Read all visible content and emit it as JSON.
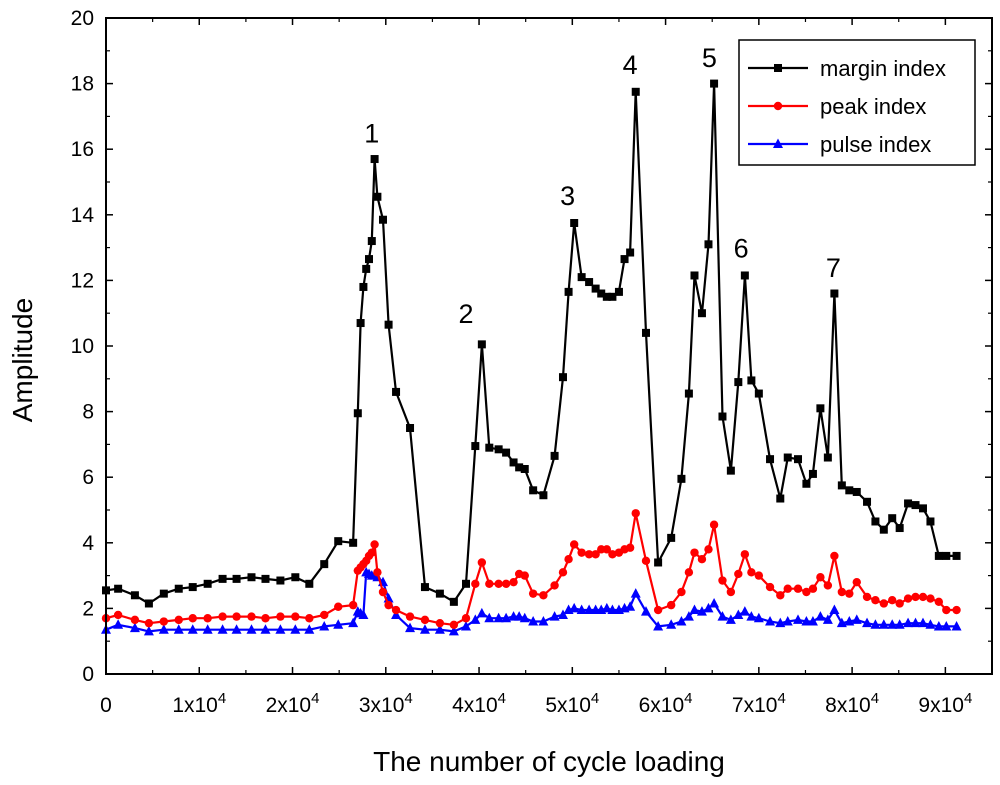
{
  "chart_data": {
    "type": "line",
    "xlabel": "The number of cycle loading",
    "ylabel": "Amplitude",
    "xlim": [
      0,
      95000
    ],
    "ylim": [
      0,
      20
    ],
    "x_ticks": [
      {
        "value": 0,
        "base": "0",
        "exp": ""
      },
      {
        "value": 10000,
        "base": "1x10",
        "exp": "4"
      },
      {
        "value": 20000,
        "base": "2x10",
        "exp": "4"
      },
      {
        "value": 30000,
        "base": "3x10",
        "exp": "4"
      },
      {
        "value": 40000,
        "base": "4x10",
        "exp": "4"
      },
      {
        "value": 50000,
        "base": "5x10",
        "exp": "4"
      },
      {
        "value": 60000,
        "base": "6x10",
        "exp": "4"
      },
      {
        "value": 70000,
        "base": "7x10",
        "exp": "4"
      },
      {
        "value": 80000,
        "base": "8x10",
        "exp": "4"
      },
      {
        "value": 90000,
        "base": "9x10",
        "exp": "4"
      }
    ],
    "y_ticks": [
      0,
      2,
      4,
      6,
      8,
      10,
      12,
      14,
      16,
      18,
      20
    ],
    "series": [
      {
        "name": "margin index",
        "color": "#000000",
        "marker": "square",
        "x": [
          0,
          1300,
          3100,
          4600,
          6200,
          7800,
          9300,
          10900,
          12500,
          14000,
          15600,
          17100,
          18700,
          20300,
          21800,
          23400,
          24900,
          26500,
          27000,
          27300,
          27600,
          27900,
          28200,
          28500,
          28800,
          29100,
          29700,
          30300,
          31100,
          32600,
          34200,
          35800,
          37300,
          38600,
          39600,
          40300,
          41100,
          42100,
          42900,
          43700,
          44300,
          44900,
          45800,
          46900,
          48100,
          49000,
          49600,
          50200,
          51000,
          51800,
          52500,
          53100,
          53700,
          54300,
          55000,
          55600,
          56200,
          56800,
          57900,
          59200,
          60600,
          61700,
          62500,
          63100,
          63900,
          64600,
          65200,
          66100,
          67000,
          67800,
          68500,
          69200,
          70000,
          71200,
          72300,
          73100,
          74200,
          75100,
          75800,
          76600,
          77400,
          78100,
          78900,
          79700,
          80500,
          81600,
          82500,
          83400,
          84300,
          85100,
          86000,
          86800,
          87600,
          88400,
          89300,
          90100,
          91200
        ],
        "values": [
          2.55,
          2.6,
          2.4,
          2.15,
          2.45,
          2.6,
          2.65,
          2.75,
          2.9,
          2.9,
          2.95,
          2.9,
          2.85,
          2.95,
          2.75,
          3.35,
          4.05,
          4.0,
          7.95,
          10.7,
          11.8,
          12.35,
          12.65,
          13.2,
          15.7,
          14.55,
          13.85,
          10.65,
          8.6,
          7.5,
          2.65,
          2.45,
          2.2,
          2.75,
          6.95,
          10.05,
          6.9,
          6.85,
          6.75,
          6.45,
          6.3,
          6.25,
          5.6,
          5.45,
          6.65,
          9.05,
          11.65,
          13.75,
          12.1,
          11.95,
          11.75,
          11.6,
          11.5,
          11.5,
          11.65,
          12.65,
          12.85,
          17.75,
          10.4,
          3.4,
          4.15,
          5.95,
          8.55,
          12.15,
          11.0,
          13.1,
          18.0,
          7.85,
          6.2,
          8.9,
          12.15,
          8.95,
          8.55,
          6.55,
          5.35,
          6.6,
          6.55,
          5.8,
          6.1,
          8.1,
          6.6,
          11.6,
          5.75,
          5.6,
          5.55,
          5.25,
          4.65,
          4.4,
          4.75,
          4.45,
          5.2,
          5.15,
          5.05,
          4.65,
          3.6,
          3.6,
          3.6
        ]
      },
      {
        "name": "peak index",
        "color": "#ff0000",
        "marker": "circle",
        "x": [
          0,
          1300,
          3100,
          4600,
          6200,
          7800,
          9300,
          10900,
          12500,
          14000,
          15600,
          17100,
          18700,
          20300,
          21800,
          23400,
          24900,
          26500,
          27000,
          27300,
          27600,
          27900,
          28200,
          28500,
          28800,
          29100,
          29700,
          30300,
          31100,
          32600,
          34200,
          35800,
          37300,
          38600,
          39600,
          40300,
          41100,
          42100,
          42900,
          43700,
          44300,
          44900,
          45800,
          46900,
          48100,
          49000,
          49600,
          50200,
          51000,
          51800,
          52500,
          53100,
          53700,
          54300,
          55000,
          55600,
          56200,
          56800,
          57900,
          59200,
          60600,
          61700,
          62500,
          63100,
          63900,
          64600,
          65200,
          66100,
          67000,
          67800,
          68500,
          69200,
          70000,
          71200,
          72300,
          73100,
          74200,
          75100,
          75800,
          76600,
          77400,
          78100,
          78900,
          79700,
          80500,
          81600,
          82500,
          83400,
          84300,
          85100,
          86000,
          86800,
          87600,
          88400,
          89300,
          90100,
          91200
        ],
        "values": [
          1.7,
          1.8,
          1.65,
          1.55,
          1.6,
          1.65,
          1.7,
          1.7,
          1.75,
          1.75,
          1.75,
          1.7,
          1.75,
          1.75,
          1.7,
          1.8,
          2.05,
          2.1,
          3.15,
          3.25,
          3.35,
          3.45,
          3.6,
          3.7,
          3.95,
          3.1,
          2.5,
          2.1,
          1.95,
          1.75,
          1.65,
          1.55,
          1.5,
          1.7,
          2.75,
          3.4,
          2.75,
          2.75,
          2.75,
          2.8,
          3.05,
          3.0,
          2.45,
          2.4,
          2.7,
          3.1,
          3.5,
          3.95,
          3.7,
          3.65,
          3.65,
          3.8,
          3.8,
          3.65,
          3.7,
          3.8,
          3.85,
          4.9,
          3.45,
          1.95,
          2.1,
          2.5,
          3.1,
          3.7,
          3.5,
          3.8,
          4.55,
          2.85,
          2.5,
          3.05,
          3.65,
          3.1,
          3.0,
          2.65,
          2.4,
          2.6,
          2.6,
          2.5,
          2.6,
          2.95,
          2.7,
          3.6,
          2.5,
          2.45,
          2.8,
          2.35,
          2.25,
          2.15,
          2.25,
          2.15,
          2.3,
          2.35,
          2.35,
          2.3,
          2.2,
          1.95,
          1.95
        ]
      },
      {
        "name": "pulse index",
        "color": "#0000ff",
        "marker": "triangle",
        "x": [
          0,
          1300,
          3100,
          4600,
          6200,
          7800,
          9300,
          10900,
          12500,
          14000,
          15600,
          17100,
          18700,
          20300,
          21800,
          23400,
          24900,
          26500,
          27000,
          27300,
          27600,
          27900,
          28200,
          28500,
          28800,
          29100,
          29700,
          30300,
          31100,
          32600,
          34200,
          35800,
          37300,
          38600,
          39600,
          40300,
          41100,
          42100,
          42900,
          43700,
          44300,
          44900,
          45800,
          46900,
          48100,
          49000,
          49600,
          50200,
          51000,
          51800,
          52500,
          53100,
          53700,
          54300,
          55000,
          55600,
          56200,
          56800,
          57900,
          59200,
          60600,
          61700,
          62500,
          63100,
          63900,
          64600,
          65200,
          66100,
          67000,
          67800,
          68500,
          69200,
          70000,
          71200,
          72300,
          73100,
          74200,
          75100,
          75800,
          76600,
          77400,
          78100,
          78900,
          79700,
          80500,
          81600,
          82500,
          83400,
          84300,
          85100,
          86000,
          86800,
          87600,
          88400,
          89300,
          90100,
          91200
        ],
        "values": [
          1.35,
          1.5,
          1.4,
          1.3,
          1.35,
          1.35,
          1.35,
          1.35,
          1.35,
          1.35,
          1.35,
          1.35,
          1.35,
          1.35,
          1.35,
          1.45,
          1.5,
          1.55,
          1.9,
          1.85,
          1.8,
          3.1,
          3.05,
          3.0,
          3.0,
          2.95,
          2.8,
          2.3,
          1.8,
          1.4,
          1.35,
          1.35,
          1.3,
          1.45,
          1.65,
          1.85,
          1.7,
          1.7,
          1.7,
          1.75,
          1.75,
          1.7,
          1.6,
          1.6,
          1.75,
          1.8,
          1.95,
          2.0,
          1.95,
          1.95,
          1.95,
          1.95,
          2.0,
          1.95,
          1.95,
          2.0,
          2.05,
          2.45,
          1.9,
          1.45,
          1.5,
          1.6,
          1.75,
          1.95,
          1.9,
          2.0,
          2.15,
          1.75,
          1.65,
          1.8,
          1.9,
          1.75,
          1.7,
          1.6,
          1.55,
          1.6,
          1.65,
          1.6,
          1.6,
          1.75,
          1.65,
          1.95,
          1.55,
          1.6,
          1.65,
          1.55,
          1.5,
          1.5,
          1.5,
          1.5,
          1.55,
          1.55,
          1.55,
          1.5,
          1.45,
          1.45,
          1.45
        ]
      }
    ],
    "annotations": [
      {
        "text": "1",
        "x": 28500,
        "y": 16.2
      },
      {
        "text": "2",
        "x": 38600,
        "y": 10.7
      },
      {
        "text": "3",
        "x": 49500,
        "y": 14.3
      },
      {
        "text": "4",
        "x": 56200,
        "y": 18.3
      },
      {
        "text": "5",
        "x": 64700,
        "y": 18.5
      },
      {
        "text": "6",
        "x": 68100,
        "y": 12.7
      },
      {
        "text": "7",
        "x": 78000,
        "y": 12.1
      }
    ],
    "legend_position": "top-right"
  }
}
